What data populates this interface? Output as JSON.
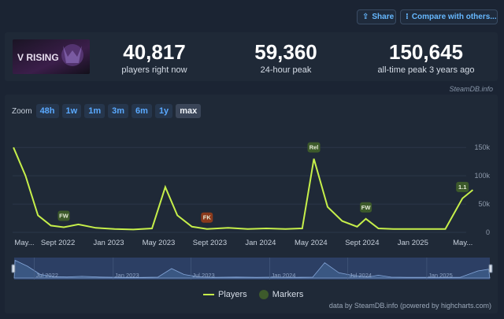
{
  "header": {
    "share_label": "Share",
    "compare_label": "Compare with others..."
  },
  "game": {
    "logo_text": "V RISING",
    "current_players": "40,817",
    "current_label": "players right now",
    "peak_24h": "59,360",
    "peak_24h_label": "24-hour peak",
    "alltime_peak": "150,645",
    "alltime_label": "all-time peak 3 years ago",
    "source_tag": "SteamDB.info"
  },
  "zoom": {
    "label": "Zoom",
    "options": [
      "48h",
      "1w",
      "1m",
      "3m",
      "6m",
      "1y",
      "max"
    ],
    "active": "max"
  },
  "legend": {
    "players": "Players",
    "markers": "Markers"
  },
  "credits": "data by SteamDB.info (powered by highcharts.com)",
  "colors": {
    "players_line": "#c6ef4a",
    "marker_green": "#3d5a2b",
    "marker_red": "#8a3a1c",
    "link_blue": "#66b8ff"
  },
  "chart_data": {
    "type": "line",
    "series": [
      {
        "name": "Players",
        "x": [
          "2022-05-17",
          "2022-06-15",
          "2022-07-15",
          "2022-08-15",
          "2022-09-15",
          "2022-10-20",
          "2022-12-01",
          "2023-01-15",
          "2023-03-01",
          "2023-04-15",
          "2023-05-17",
          "2023-06-15",
          "2023-07-20",
          "2023-08-25",
          "2023-10-15",
          "2023-12-01",
          "2024-01-15",
          "2024-03-01",
          "2024-04-10",
          "2024-05-08",
          "2024-06-10",
          "2024-07-15",
          "2024-08-20",
          "2024-09-10",
          "2024-10-10",
          "2024-11-15",
          "2025-01-01",
          "2025-02-15",
          "2025-03-20",
          "2025-04-30",
          "2025-05-25"
        ],
        "y": [
          150000,
          100000,
          30000,
          12000,
          9000,
          14000,
          8000,
          6000,
          5000,
          7000,
          80000,
          30000,
          10000,
          6000,
          8000,
          6000,
          7000,
          6000,
          7000,
          130000,
          45000,
          20000,
          10000,
          24000,
          7000,
          6000,
          6000,
          6000,
          6000,
          60000,
          75000
        ]
      }
    ],
    "markers": [
      {
        "label": "FW",
        "x": "2022-09-15",
        "color": "#3d5a2b"
      },
      {
        "label": "FK",
        "x": "2023-08-25",
        "color": "#8a3a1c"
      },
      {
        "label": "Rel",
        "x": "2024-05-08",
        "color": "#3d5a2b"
      },
      {
        "label": "FW",
        "x": "2024-09-10",
        "color": "#3d5a2b"
      },
      {
        "label": "1.1",
        "x": "2025-04-30",
        "color": "#3d5a2b"
      }
    ],
    "x_ticks": [
      "May...",
      "Sept 2022",
      "Jan 2023",
      "May 2023",
      "Sept 2023",
      "Jan 2024",
      "May 2024",
      "Sept 2024",
      "Jan 2025",
      "May..."
    ],
    "y_ticks": [
      "150k",
      "100k",
      "50k",
      "0"
    ],
    "ylim": [
      0,
      160000
    ],
    "navigator_ticks": [
      "Jul 2022",
      "Jan 2023",
      "Jul 2023",
      "Jan 2024",
      "Jul 2024",
      "Jan 2025"
    ],
    "grid": true
  }
}
